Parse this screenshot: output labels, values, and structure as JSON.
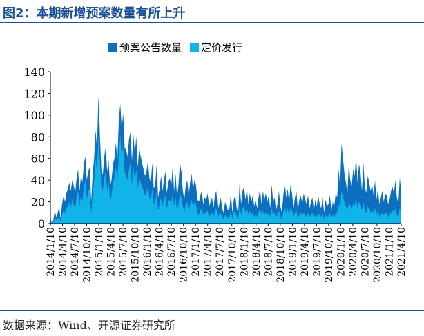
{
  "figure": {
    "title": "图2：本期新增预案数量有所上升",
    "source": "数据来源：Wind、开源证券研究所"
  },
  "colors": {
    "primary": "#0d6fc0",
    "secondary": "#11b4e8",
    "accent": "#1a4f9c"
  },
  "chart_data": {
    "type": "area",
    "title": "",
    "xlabel": "",
    "ylabel": "",
    "ylim": [
      0,
      140
    ],
    "yticks": [
      0,
      20,
      40,
      60,
      80,
      100,
      120,
      140
    ],
    "grid": false,
    "legend_position": "top",
    "layout": "overlapping",
    "x_tick_labels": [
      "2014/1/10",
      "2014/4/10",
      "2014/7/10",
      "2014/10/10",
      "2015/1/10",
      "2015/4/10",
      "2015/7/10",
      "2015/10/10",
      "2016/1/10",
      "2016/4/10",
      "2016/7/10",
      "2016/10/10",
      "2017/1/10",
      "2017/4/10",
      "2017/7/10",
      "2017/10/10",
      "2018/1/10",
      "2018/4/10",
      "2018/7/10",
      "2018/10/10",
      "2019/1/10",
      "2019/4/10",
      "2019/7/10",
      "2019/10/10",
      "2020/1/10",
      "2020/4/10",
      "2020/7/10",
      "2020/10/10",
      "2021/1/10",
      "2021/4/10"
    ],
    "series": [
      {
        "name": "预案公告数量",
        "values": [
          5,
          0,
          3,
          12,
          6,
          10,
          15,
          5,
          18,
          25,
          20,
          28,
          32,
          38,
          30,
          40,
          35,
          28,
          42,
          50,
          30,
          44,
          38,
          55,
          62,
          40,
          48,
          52,
          20,
          45,
          60,
          86,
          70,
          118,
          82,
          50,
          45,
          62,
          70,
          48,
          58,
          35,
          40,
          55,
          60,
          75,
          58,
          96,
          110,
          88,
          102,
          70,
          68,
          62,
          78,
          84,
          58,
          82,
          65,
          80,
          52,
          70,
          62,
          56,
          50,
          44,
          48,
          58,
          42,
          38,
          56,
          32,
          36,
          54,
          24,
          32,
          44,
          30,
          40,
          48,
          28,
          38,
          42,
          35,
          52,
          30,
          46,
          24,
          36,
          56,
          48,
          30,
          22,
          35,
          40,
          26,
          38,
          46,
          32,
          40,
          36,
          22,
          20,
          26,
          30,
          18,
          24,
          22,
          28,
          16,
          20,
          24,
          14,
          26,
          30,
          12,
          18,
          24,
          14,
          10,
          20,
          16,
          12,
          14,
          28,
          10,
          22,
          26,
          14,
          10,
          38,
          18,
          30,
          34,
          22,
          32,
          18,
          28,
          20,
          26,
          16,
          22,
          14,
          24,
          32,
          18,
          30,
          22,
          28,
          20,
          26,
          14,
          36,
          20,
          24,
          12,
          18,
          30,
          16,
          10,
          26,
          38,
          24,
          32,
          20,
          36,
          28,
          14,
          24,
          30,
          12,
          22,
          26,
          18,
          28,
          22,
          18,
          26,
          14,
          20,
          24,
          12,
          22,
          16,
          26,
          18,
          14,
          24,
          10,
          22,
          16,
          18,
          26,
          12,
          20,
          16,
          28,
          24,
          50,
          34,
          74,
          60,
          46,
          38,
          28,
          55,
          40,
          35,
          50,
          44,
          62,
          38,
          55,
          48,
          30,
          56,
          34,
          28,
          44,
          38,
          30,
          36,
          26,
          40,
          22,
          32,
          18,
          24,
          30,
          20,
          28,
          26,
          18,
          22,
          30,
          34,
          28,
          40,
          24,
          18,
          42,
          30
        ]
      },
      {
        "name": "定价发行",
        "values": [
          2,
          0,
          1,
          5,
          3,
          4,
          6,
          2,
          8,
          12,
          10,
          14,
          16,
          20,
          15,
          22,
          18,
          14,
          24,
          30,
          16,
          26,
          20,
          34,
          40,
          22,
          30,
          32,
          8,
          28,
          38,
          60,
          48,
          82,
          58,
          34,
          30,
          42,
          48,
          30,
          40,
          20,
          26,
          38,
          42,
          52,
          40,
          62,
          82,
          60,
          72,
          48,
          44,
          40,
          50,
          56,
          36,
          52,
          40,
          50,
          32,
          42,
          38,
          34,
          30,
          26,
          28,
          34,
          24,
          22,
          32,
          18,
          20,
          30,
          12,
          18,
          24,
          16,
          22,
          26,
          14,
          20,
          22,
          18,
          28,
          16,
          24,
          12,
          18,
          28,
          24,
          16,
          10,
          18,
          20,
          12,
          18,
          22,
          16,
          20,
          18,
          10,
          8,
          12,
          14,
          8,
          10,
          10,
          12,
          6,
          8,
          10,
          6,
          12,
          14,
          5,
          8,
          10,
          6,
          4,
          8,
          6,
          5,
          6,
          12,
          4,
          10,
          12,
          6,
          4,
          16,
          8,
          14,
          16,
          10,
          14,
          8,
          12,
          8,
          10,
          6,
          8,
          6,
          10,
          14,
          8,
          12,
          8,
          10,
          8,
          10,
          6,
          14,
          8,
          10,
          5,
          8,
          12,
          6,
          4,
          10,
          16,
          10,
          14,
          8,
          14,
          12,
          6,
          10,
          12,
          5,
          8,
          10,
          8,
          10,
          8,
          6,
          10,
          6,
          8,
          10,
          5,
          8,
          6,
          10,
          8,
          6,
          10,
          4,
          8,
          6,
          6,
          10,
          5,
          8,
          6,
          10,
          10,
          18,
          14,
          30,
          24,
          20,
          16,
          12,
          20,
          16,
          14,
          18,
          16,
          24,
          14,
          20,
          18,
          12,
          20,
          12,
          10,
          16,
          14,
          10,
          12,
          10,
          14,
          8,
          12,
          6,
          8,
          10,
          8,
          10,
          10,
          6,
          8,
          10,
          12,
          10,
          14,
          8,
          6,
          14,
          10
        ]
      }
    ]
  }
}
